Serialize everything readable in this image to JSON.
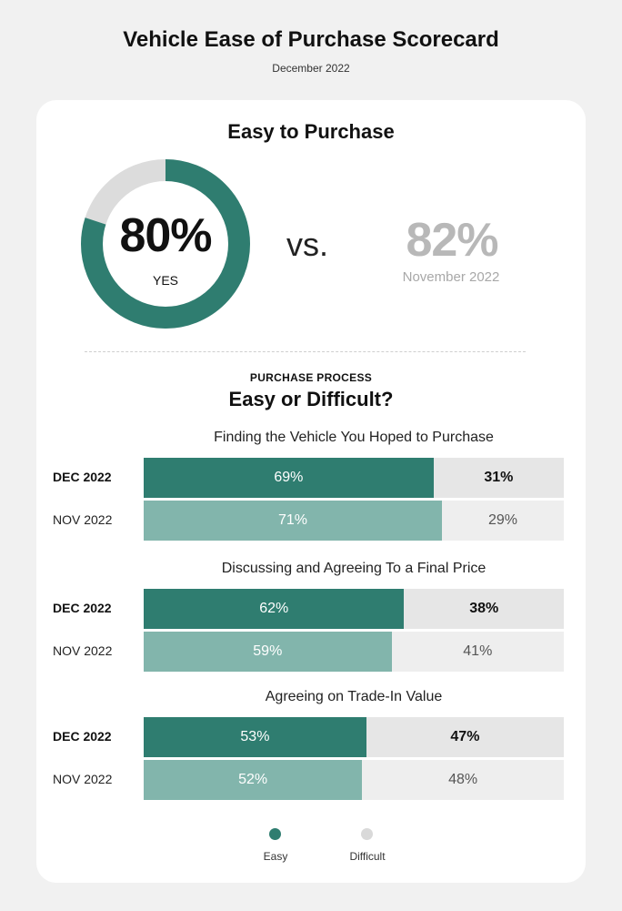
{
  "title": "Vehicle Ease of Purchase Scorecard",
  "subtitle": "December 2022",
  "kpi": {
    "heading": "Easy to Purchase",
    "current_value": "80%",
    "current_fraction": 0.8,
    "current_label": "YES",
    "vs_label": "vs.",
    "previous_value": "82%",
    "previous_label": "November 2022"
  },
  "section": {
    "kicker": "PURCHASE PROCESS",
    "title": "Easy or Difficult?"
  },
  "colors": {
    "easy_current": "#2f7d70",
    "easy_previous": "#82b5ac",
    "difficult": "#e6e6e6",
    "donut_track": "#dcdcdc"
  },
  "chart_data": [
    {
      "type": "bar",
      "stacked": true,
      "orientation": "horizontal",
      "title": "Finding the Vehicle You Hoped to Purchase",
      "categories": [
        "DEC 2022",
        "NOV 2022"
      ],
      "series": [
        {
          "name": "Easy",
          "values": [
            69,
            71
          ],
          "labels": [
            "69%",
            "71%"
          ]
        },
        {
          "name": "Difficult",
          "values": [
            31,
            29
          ],
          "labels": [
            "31%",
            "29%"
          ]
        }
      ]
    },
    {
      "type": "bar",
      "stacked": true,
      "orientation": "horizontal",
      "title": "Discussing and Agreeing To a Final Price",
      "categories": [
        "DEC 2022",
        "NOV 2022"
      ],
      "series": [
        {
          "name": "Easy",
          "values": [
            62,
            59
          ],
          "labels": [
            "62%",
            "59%"
          ]
        },
        {
          "name": "Difficult",
          "values": [
            38,
            41
          ],
          "labels": [
            "38%",
            "41%"
          ]
        }
      ]
    },
    {
      "type": "bar",
      "stacked": true,
      "orientation": "horizontal",
      "title": "Agreeing on Trade-In Value",
      "categories": [
        "DEC 2022",
        "NOV 2022"
      ],
      "series": [
        {
          "name": "Easy",
          "values": [
            53,
            52
          ],
          "labels": [
            "53%",
            "52%"
          ]
        },
        {
          "name": "Difficult",
          "values": [
            47,
            48
          ],
          "labels": [
            "47%",
            "48%"
          ]
        }
      ]
    }
  ],
  "legend": {
    "position": "bottom",
    "items": [
      {
        "label": "Easy",
        "color": "#2f7d70"
      },
      {
        "label": "Difficult",
        "color": "#d9d9d9"
      }
    ]
  }
}
